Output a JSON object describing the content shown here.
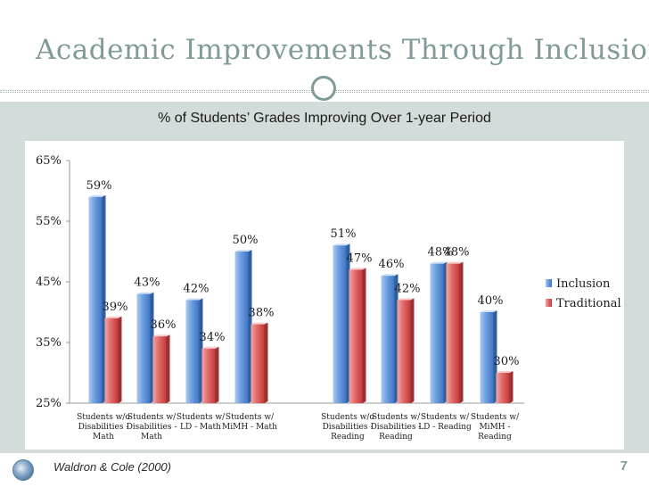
{
  "slide": {
    "title": "Academic Improvements Through Inclusion",
    "citation": "Waldron & Cole (2000)",
    "page_number": "7"
  },
  "colors": {
    "title": "#7f9a99",
    "band": "#d3dcdb",
    "inclusion": "#5b8fd6",
    "traditional": "#e06262"
  },
  "chart_data": {
    "type": "bar",
    "title": "% of Students’ Grades Improving Over 1-year Period",
    "xlabel": "",
    "ylabel": "",
    "ylim": [
      25,
      65
    ],
    "yticks": [
      25,
      35,
      45,
      55,
      65
    ],
    "ytick_labels": [
      "25%",
      "35%",
      "45%",
      "55%",
      "65%"
    ],
    "grid": false,
    "legend_position": "right",
    "categories": [
      [
        "Students w/o",
        "Disabilities -",
        "Math"
      ],
      [
        "Students w/",
        "Disabilities -",
        "Math"
      ],
      [
        "Students w/",
        "LD - Math"
      ],
      [
        "Students w/",
        "MiMH - Math"
      ],
      [
        "Students w/o",
        "Disabilities -",
        "Reading"
      ],
      [
        "Students w/",
        "Disabilities -",
        "Reading"
      ],
      [
        "Students w/",
        "LD - Reading"
      ],
      [
        "Students w/",
        "MiMH -",
        "Reading"
      ]
    ],
    "series": [
      {
        "name": "Inclusion",
        "values": [
          59,
          43,
          42,
          50,
          51,
          46,
          48,
          40
        ],
        "labels": [
          "59%",
          "43%",
          "42%",
          "50%",
          "51%",
          "46%",
          "48%",
          "40%"
        ]
      },
      {
        "name": "Traditional",
        "values": [
          39,
          36,
          34,
          38,
          47,
          42,
          48,
          30
        ],
        "labels": [
          "39%",
          "36%",
          "34%",
          "38%",
          "47%",
          "42%",
          "48%",
          "30%"
        ]
      }
    ]
  }
}
